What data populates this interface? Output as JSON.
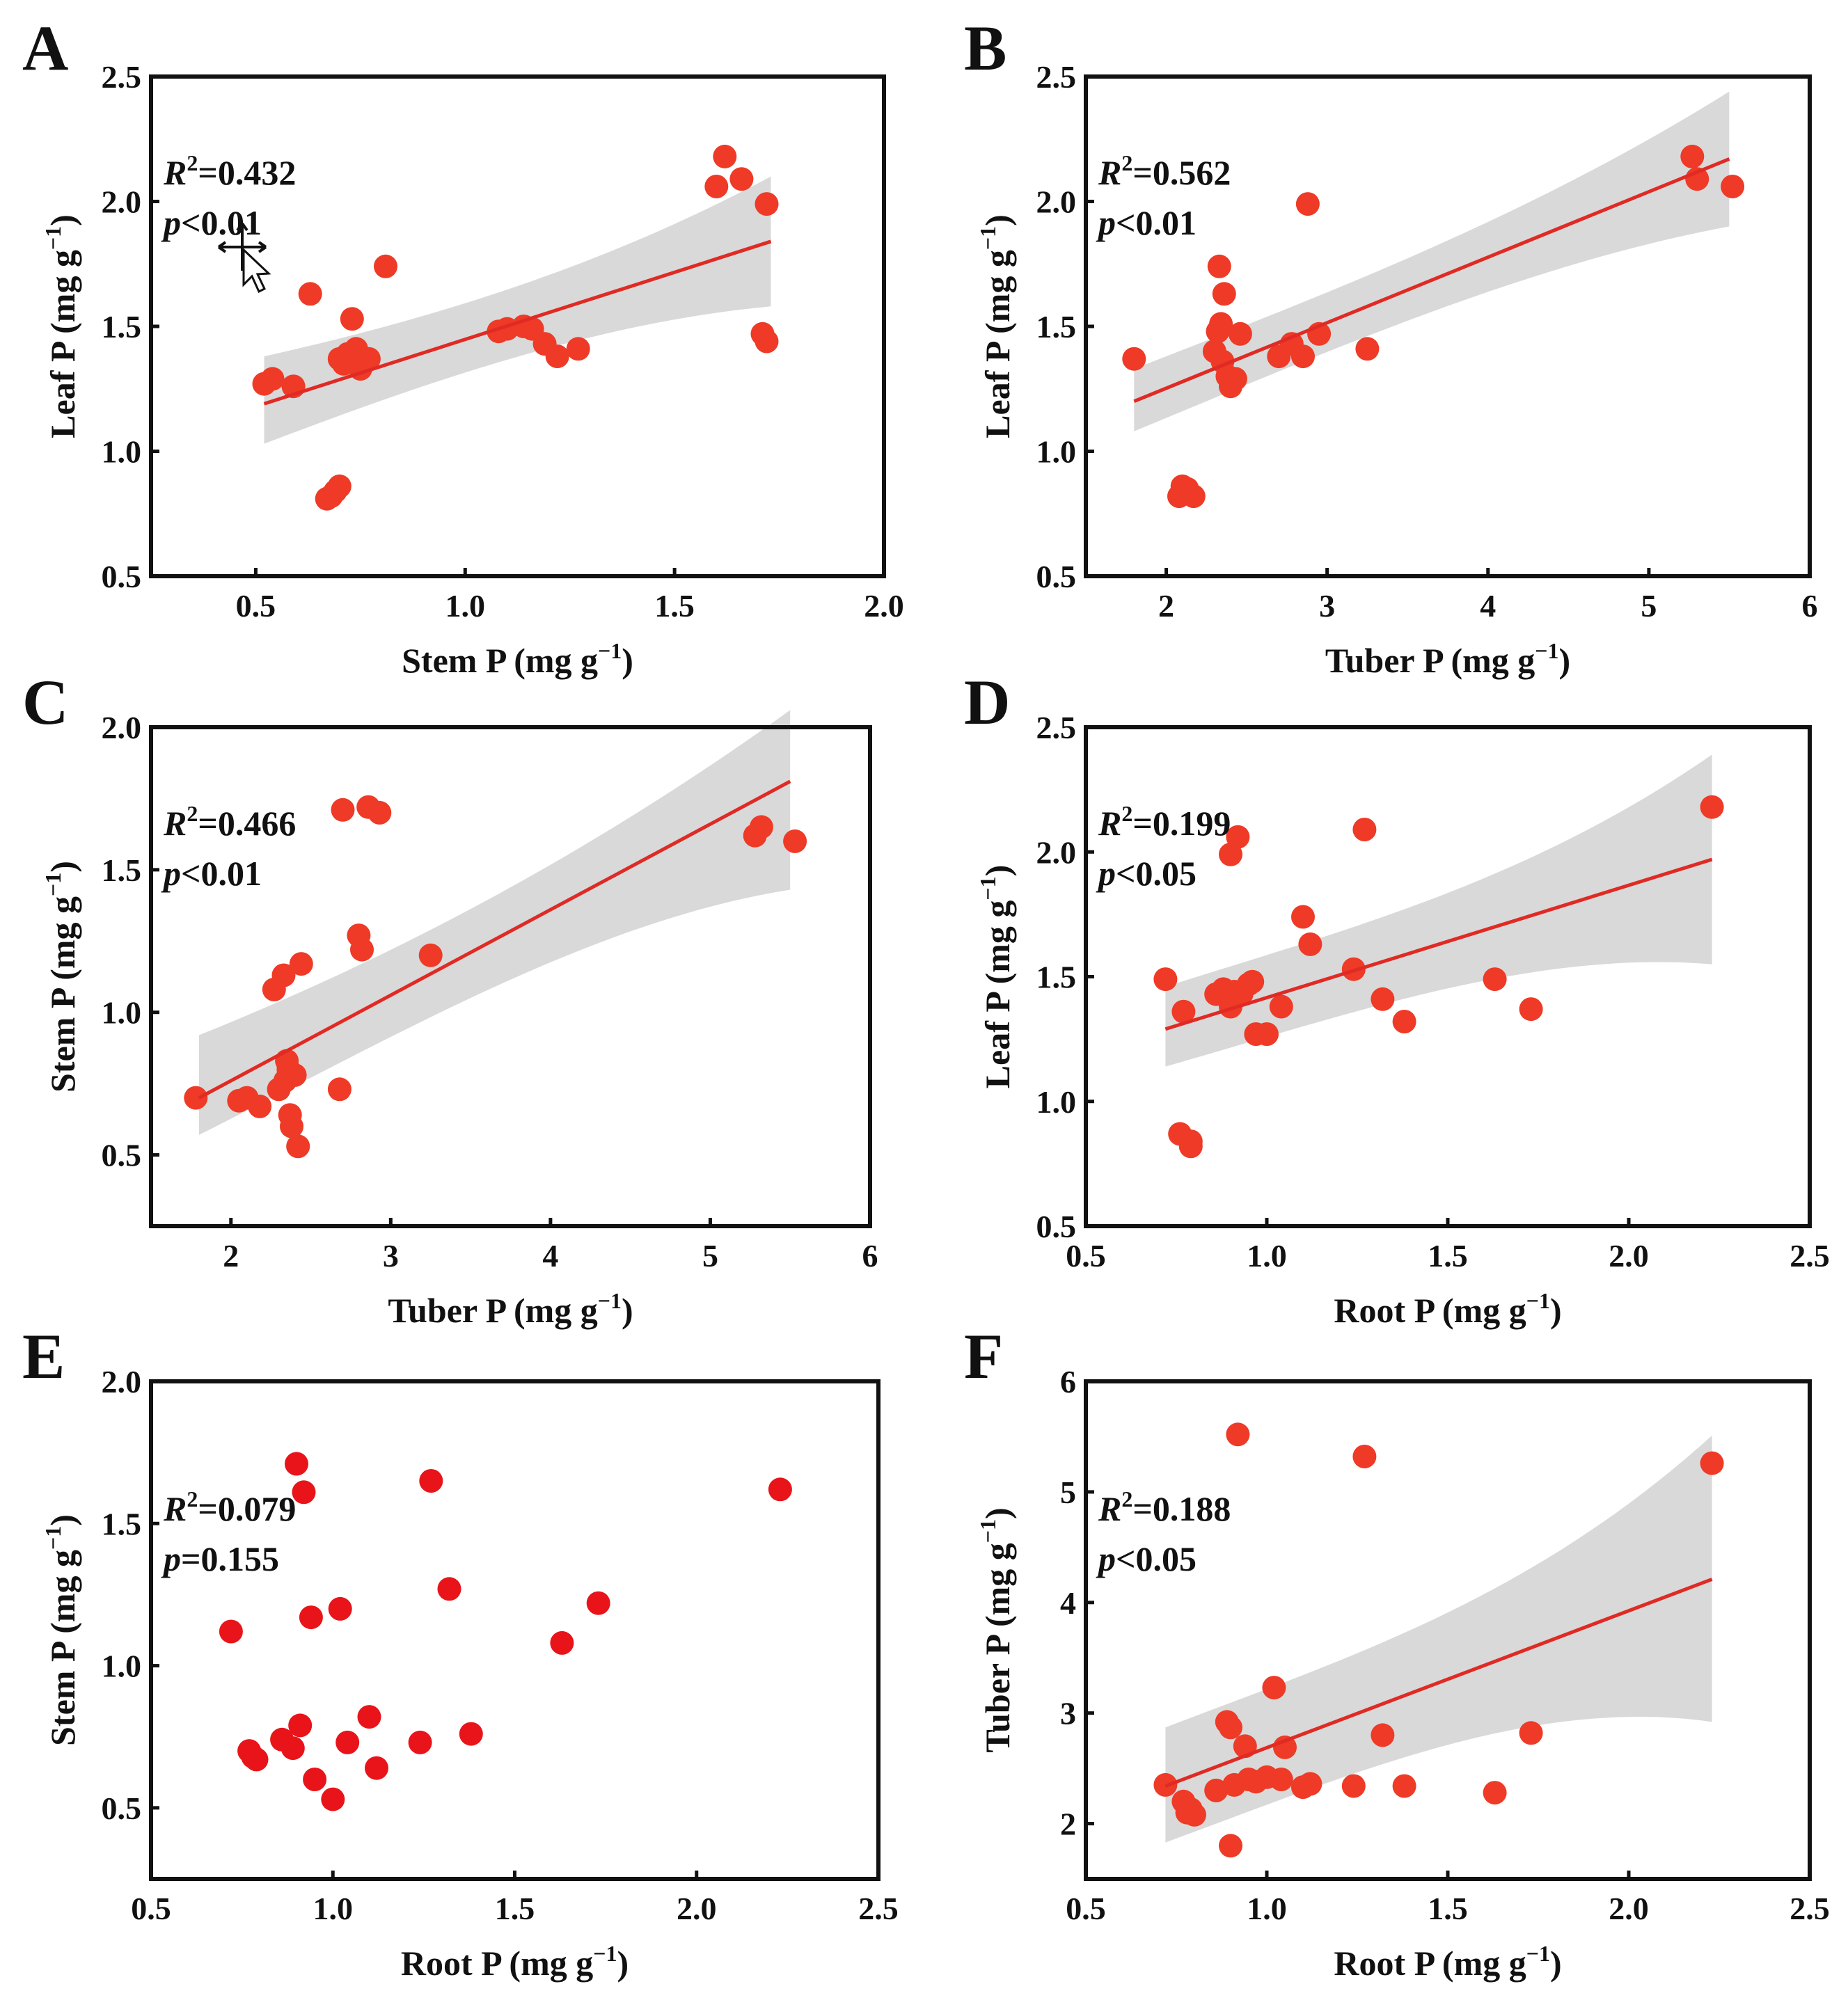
{
  "figure": {
    "panel_letters": [
      "A",
      "B",
      "C",
      "D",
      "E",
      "F"
    ]
  },
  "colors": {
    "point": "#ee3a26",
    "point_E": "#e8141a",
    "fit_line": "#e02a24",
    "band": "#d9d9d9"
  },
  "chart_data": [
    {
      "panel": "A",
      "type": "scatter",
      "xlabel": "Stem P (mg g",
      "ylabel": "Leaf P (mg g",
      "unit_exp": "−1",
      "unit_close": ")",
      "xlim": [
        0.25,
        2.0
      ],
      "ylim": [
        0.5,
        2.5
      ],
      "xticks": [
        0.5,
        1.0,
        1.5,
        2.0
      ],
      "xtick_labels": [
        "0.5",
        "1.0",
        "1.5",
        "2.0"
      ],
      "yticks": [
        0.5,
        1.0,
        1.5,
        2.0,
        2.5
      ],
      "ytick_labels": [
        "0.5",
        "1.0",
        "1.5",
        "2.0",
        "2.5"
      ],
      "r2_label": "R",
      "r2_sup": "2",
      "r2_value": "=0.432",
      "p_label": "p",
      "p_value": "<0.01",
      "fit": {
        "x": [
          0.52,
          1.73
        ],
        "y": [
          1.19,
          1.84
        ],
        "ci_low": [
          1.03,
          1.58
        ],
        "ci_high": [
          1.38,
          2.1
        ]
      },
      "points": {
        "x": [
          0.52,
          0.54,
          0.59,
          0.63,
          0.67,
          0.68,
          0.69,
          0.7,
          0.7,
          0.71,
          0.72,
          0.73,
          0.74,
          0.75,
          0.77,
          0.81,
          1.08,
          1.1,
          1.14,
          1.16,
          1.19,
          1.22,
          1.27,
          1.6,
          1.62,
          1.66,
          1.71,
          1.72,
          1.72
        ],
        "y": [
          1.27,
          1.29,
          1.26,
          1.63,
          0.81,
          0.82,
          0.84,
          0.86,
          1.37,
          1.35,
          1.39,
          1.53,
          1.41,
          1.33,
          1.37,
          1.74,
          1.48,
          1.49,
          1.5,
          1.49,
          1.43,
          1.38,
          1.41,
          2.06,
          2.18,
          2.09,
          1.47,
          1.44,
          1.99
        ]
      }
    },
    {
      "panel": "B",
      "type": "scatter",
      "xlabel": "Tuber P (mg g",
      "ylabel": "Leaf P (mg g",
      "unit_exp": "−1",
      "unit_close": ")",
      "xlim": [
        1.5,
        6.0
      ],
      "ylim": [
        0.5,
        2.5
      ],
      "xticks": [
        2,
        3,
        4,
        5,
        6
      ],
      "xtick_labels": [
        "2",
        "3",
        "4",
        "5",
        "6"
      ],
      "yticks": [
        0.5,
        1.0,
        1.5,
        2.0,
        2.5
      ],
      "ytick_labels": [
        "0.5",
        "1.0",
        "1.5",
        "2.0",
        "2.5"
      ],
      "r2_label": "R",
      "r2_sup": "2",
      "r2_value": "=0.562",
      "p_label": "p",
      "p_value": "<0.01",
      "fit": {
        "x": [
          1.8,
          5.5
        ],
        "y": [
          1.2,
          2.17
        ],
        "ci_low": [
          1.08,
          1.9
        ],
        "ci_high": [
          1.33,
          2.44
        ]
      },
      "points": {
        "x": [
          1.8,
          2.08,
          2.1,
          2.13,
          2.17,
          2.3,
          2.32,
          2.33,
          2.34,
          2.35,
          2.36,
          2.38,
          2.4,
          2.43,
          2.46,
          2.7,
          2.78,
          2.85,
          2.88,
          2.95,
          3.25,
          5.27,
          5.3,
          5.52
        ],
        "y": [
          1.37,
          0.82,
          0.86,
          0.85,
          0.82,
          1.4,
          1.48,
          1.74,
          1.51,
          1.36,
          1.63,
          1.3,
          1.26,
          1.29,
          1.47,
          1.38,
          1.43,
          1.38,
          1.99,
          1.47,
          1.41,
          2.18,
          2.09,
          2.06
        ]
      }
    },
    {
      "panel": "C",
      "type": "scatter",
      "xlabel": "Tuber P (mg g",
      "ylabel": "Stem P (mg g",
      "unit_exp": "−1",
      "unit_close": ")",
      "xlim": [
        1.5,
        6.0
      ],
      "ylim": [
        0.25,
        2.0
      ],
      "xticks": [
        2,
        3,
        4,
        5,
        6
      ],
      "xtick_labels": [
        "2",
        "3",
        "4",
        "5",
        "6"
      ],
      "yticks": [
        0.5,
        1.0,
        1.5,
        2.0
      ],
      "ytick_labels": [
        "0.5",
        "1.0",
        "1.5",
        "2.0"
      ],
      "r2_label": "R",
      "r2_sup": "2",
      "r2_value": "=0.466",
      "p_label": "p",
      "p_value": "<0.01",
      "fit": {
        "x": [
          1.8,
          5.5
        ],
        "y": [
          0.7,
          1.81
        ],
        "ci_low": [
          0.57,
          1.43
        ],
        "ci_high": [
          0.92,
          2.06
        ]
      },
      "points": {
        "x": [
          1.78,
          2.05,
          2.1,
          2.18,
          2.27,
          2.3,
          2.33,
          2.34,
          2.35,
          2.36,
          2.37,
          2.38,
          2.4,
          2.42,
          2.44,
          2.68,
          2.7,
          2.8,
          2.82,
          2.86,
          2.93,
          3.25,
          5.28,
          5.32,
          5.53
        ],
        "y": [
          0.7,
          0.69,
          0.7,
          0.67,
          1.08,
          0.73,
          1.13,
          0.76,
          0.83,
          0.8,
          0.64,
          0.6,
          0.78,
          0.53,
          1.17,
          0.73,
          1.71,
          1.27,
          1.22,
          1.72,
          1.7,
          1.2,
          1.62,
          1.65,
          1.6
        ]
      }
    },
    {
      "panel": "D",
      "type": "scatter",
      "xlabel": "Root P (mg g",
      "ylabel": "Leaf P (mg g",
      "unit_exp": "−1",
      "unit_close": ")",
      "xlim": [
        0.5,
        2.5
      ],
      "ylim": [
        0.5,
        2.5
      ],
      "xticks": [
        0.5,
        1.0,
        1.5,
        2.0,
        2.5
      ],
      "xtick_labels": [
        "0.5",
        "1.0",
        "1.5",
        "2.0",
        "2.5"
      ],
      "yticks": [
        0.5,
        1.0,
        1.5,
        2.0,
        2.5
      ],
      "ytick_labels": [
        "0.5",
        "1.0",
        "1.5",
        "2.0",
        "2.5"
      ],
      "r2_label": "R",
      "r2_sup": "2",
      "r2_value": "=0.199",
      "p_label": "p",
      "p_value": "<0.05",
      "fit": {
        "x": [
          0.72,
          2.23
        ],
        "y": [
          1.29,
          1.97
        ],
        "ci_low": [
          1.14,
          1.55
        ],
        "ci_high": [
          1.46,
          2.39
        ]
      },
      "points": {
        "x": [
          0.72,
          0.76,
          0.77,
          0.79,
          0.79,
          0.86,
          0.88,
          0.9,
          0.9,
          0.91,
          0.92,
          0.93,
          0.95,
          0.96,
          0.97,
          1.0,
          1.04,
          1.1,
          1.12,
          1.24,
          1.27,
          1.32,
          1.38,
          1.63,
          1.73,
          2.23
        ],
        "y": [
          1.49,
          0.87,
          1.36,
          0.84,
          0.82,
          1.43,
          1.45,
          1.99,
          1.38,
          1.44,
          2.06,
          1.43,
          1.47,
          1.48,
          1.27,
          1.27,
          1.38,
          1.74,
          1.63,
          1.53,
          2.09,
          1.41,
          1.32,
          1.49,
          1.37,
          2.18
        ]
      }
    },
    {
      "panel": "E",
      "type": "scatter",
      "xlabel": "Root P (mg g",
      "ylabel": "Stem P (mg g",
      "unit_exp": "−1",
      "unit_close": ")",
      "xlim": [
        0.5,
        2.5
      ],
      "ylim": [
        0.25,
        2.0
      ],
      "xticks": [
        0.5,
        1.0,
        1.5,
        2.0,
        2.5
      ],
      "xtick_labels": [
        "0.5",
        "1.0",
        "1.5",
        "2.0",
        "2.5"
      ],
      "yticks": [
        0.5,
        1.0,
        1.5,
        2.0
      ],
      "ytick_labels": [
        "0.5",
        "1.0",
        "1.5",
        "2.0"
      ],
      "r2_label": "R",
      "r2_sup": "2",
      "r2_value": "=0.079",
      "p_label": "p",
      "p_value": "=0.155",
      "fit": null,
      "points": {
        "x": [
          0.72,
          0.77,
          0.78,
          0.79,
          0.86,
          0.89,
          0.9,
          0.91,
          0.92,
          0.94,
          0.95,
          1.0,
          1.02,
          1.04,
          1.1,
          1.12,
          1.24,
          1.27,
          1.32,
          1.38,
          1.63,
          1.73,
          2.23
        ],
        "y": [
          1.12,
          0.7,
          0.68,
          0.67,
          0.74,
          0.71,
          1.71,
          0.79,
          1.61,
          1.17,
          0.6,
          0.53,
          1.2,
          0.73,
          0.82,
          0.64,
          0.73,
          1.65,
          1.27,
          0.76,
          1.08,
          1.22,
          1.62
        ]
      }
    },
    {
      "panel": "F",
      "type": "scatter",
      "xlabel": "Root P (mg g",
      "ylabel": "Tuber P (mg g",
      "unit_exp": "−1",
      "unit_close": ")",
      "xlim": [
        0.5,
        2.5
      ],
      "ylim": [
        1.5,
        6.0
      ],
      "xticks": [
        0.5,
        1.0,
        1.5,
        2.0,
        2.5
      ],
      "xtick_labels": [
        "0.5",
        "1.0",
        "1.5",
        "2.0",
        "2.5"
      ],
      "yticks": [
        2,
        3,
        4,
        5,
        6
      ],
      "ytick_labels": [
        "2",
        "3",
        "4",
        "5",
        "6"
      ],
      "r2_label": "R",
      "r2_sup": "2",
      "r2_value": "=0.188",
      "p_label": "p",
      "p_value": "<0.05",
      "fit": {
        "x": [
          0.72,
          2.23
        ],
        "y": [
          2.34,
          4.21
        ],
        "ci_low": [
          1.83,
          2.92
        ],
        "ci_high": [
          2.87,
          5.51
        ]
      },
      "points": {
        "x": [
          0.72,
          0.77,
          0.78,
          0.79,
          0.8,
          0.86,
          0.89,
          0.9,
          0.9,
          0.91,
          0.92,
          0.94,
          0.95,
          0.97,
          1.0,
          1.02,
          1.04,
          1.05,
          1.1,
          1.12,
          1.24,
          1.27,
          1.32,
          1.38,
          1.63,
          1.73,
          2.23
        ],
        "y": [
          2.35,
          2.2,
          2.1,
          2.13,
          2.08,
          2.3,
          2.92,
          1.8,
          2.87,
          2.35,
          5.52,
          2.7,
          2.4,
          2.38,
          2.42,
          3.23,
          2.4,
          2.69,
          2.33,
          2.36,
          2.34,
          5.32,
          2.8,
          2.34,
          2.28,
          2.82,
          5.26
        ]
      }
    }
  ]
}
